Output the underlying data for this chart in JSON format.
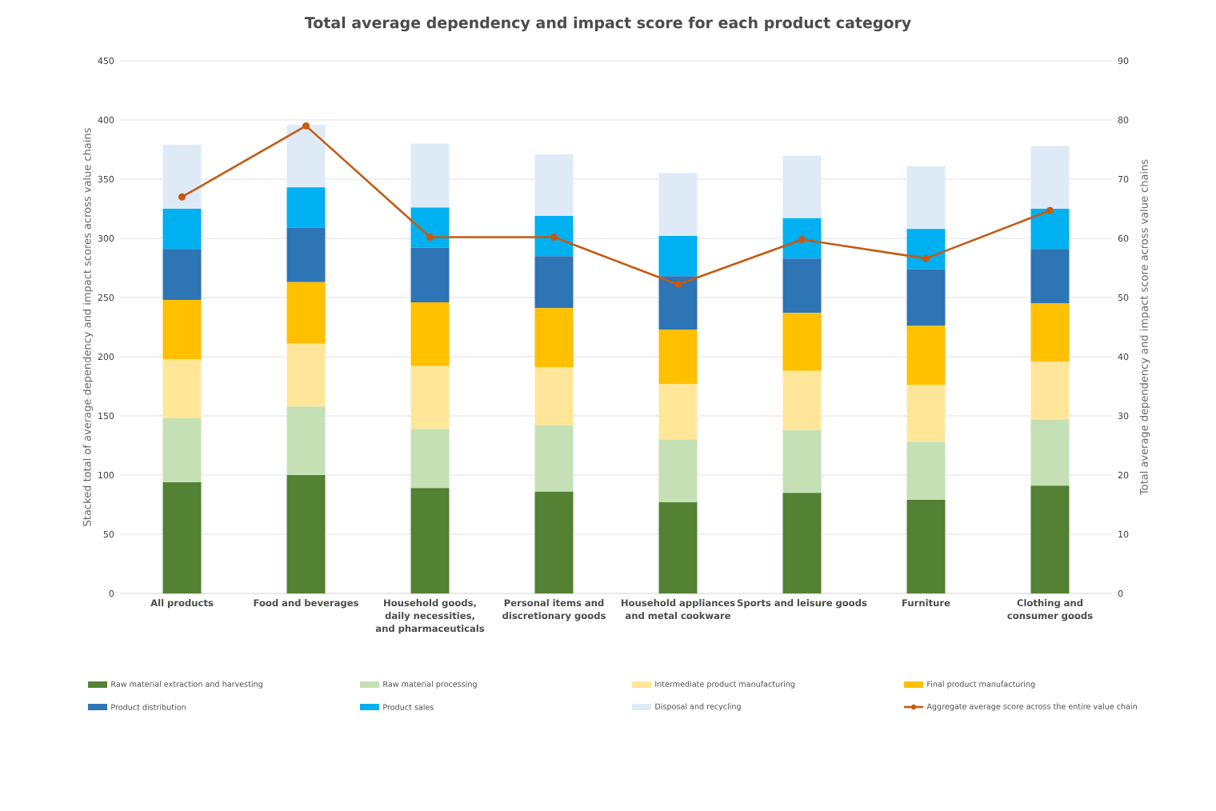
{
  "chart_data": {
    "type": "bar",
    "title": "Total average dependency and impact score for each product category",
    "ylabel": "Stacked total of average dependency and impact scores across value chains",
    "y2label": "Total average dependency and impact score across value chains",
    "categories": [
      "All products",
      "Food and beverages",
      "Household goods, daily necessities, and pharmaceuticals",
      "Personal items and discretionary goods",
      "Household appliances and metal cookware",
      "Sports and leisure goods",
      "Furniture",
      "Clothing and consumer goods"
    ],
    "stacked": true,
    "ylim": [
      0,
      450
    ],
    "yticks": [
      0,
      50,
      100,
      150,
      200,
      250,
      300,
      350,
      400,
      450
    ],
    "y2lim": [
      0,
      90
    ],
    "y2ticks": [
      0,
      10,
      20,
      30,
      40,
      50,
      60,
      70,
      80,
      90
    ],
    "grid": "y",
    "legend": "bottom",
    "marker": "circle",
    "series": [
      {
        "name": "Raw material extraction and harvesting",
        "color": "#548235",
        "values": [
          94,
          100,
          89,
          86,
          77,
          85,
          79,
          91
        ]
      },
      {
        "name": "Raw material processing",
        "color": "#c5e0b4",
        "values": [
          54,
          58,
          50,
          56,
          53,
          53,
          49,
          56
        ]
      },
      {
        "name": "Intermediate product manufacturing",
        "color": "#ffe699",
        "values": [
          50,
          53,
          53,
          49,
          47,
          50,
          48,
          49
        ]
      },
      {
        "name": "Final product manufacturing",
        "color": "#ffc000",
        "values": [
          50,
          52,
          54,
          50,
          46,
          49,
          50,
          49
        ]
      },
      {
        "name": "Product distribution",
        "color": "#2e75b6",
        "values": [
          43,
          46,
          46,
          44,
          45,
          46,
          48,
          46
        ]
      },
      {
        "name": "Product sales",
        "color": "#00b0f0",
        "values": [
          34,
          34,
          34,
          34,
          34,
          34,
          34,
          34
        ]
      },
      {
        "name": "Disposal and recycling",
        "color": "#deebf7",
        "values": [
          54,
          53,
          54,
          52,
          53,
          53,
          53,
          53
        ]
      },
      {
        "name": "Aggregate average score across the entire value chain",
        "color": "#c55a11",
        "type": "line",
        "axis": "y2",
        "values": [
          67,
          79,
          60.2,
          60.2,
          52.2,
          59.8,
          56.6,
          64.7
        ]
      }
    ]
  }
}
